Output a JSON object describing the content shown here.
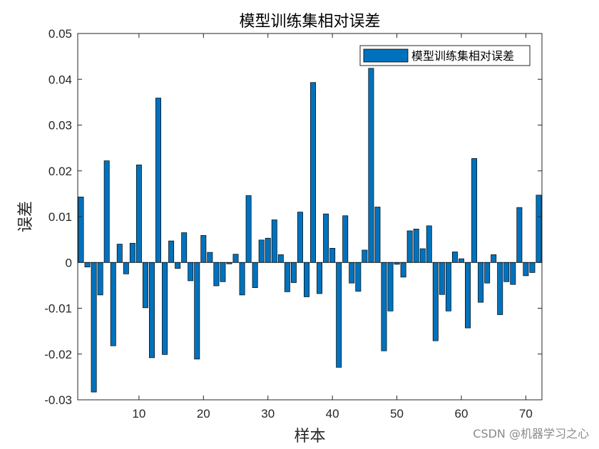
{
  "chart_data": {
    "type": "bar",
    "title": "模型训练集相对误差",
    "xlabel": "样本",
    "ylabel": "误差",
    "xlim": [
      0.5,
      72.5
    ],
    "ylim": [
      -0.03,
      0.05
    ],
    "xticks": [
      10,
      20,
      30,
      40,
      50,
      60,
      70
    ],
    "yticks": [
      -0.03,
      -0.02,
      -0.01,
      0,
      0.01,
      0.02,
      0.03,
      0.04,
      0.05
    ],
    "ytick_labels": [
      "-0.03",
      "-0.02",
      "-0.01",
      "0",
      "0.01",
      "0.02",
      "0.03",
      "0.04",
      "0.05"
    ],
    "legend": {
      "position": "top-right",
      "entries": [
        "模型训练集相对误差"
      ]
    },
    "bar_color": "#0072BD",
    "edge_color": "#000000",
    "series": [
      {
        "name": "模型训练集相对误差",
        "x": [
          1,
          2,
          3,
          4,
          5,
          6,
          7,
          8,
          9,
          10,
          11,
          12,
          13,
          14,
          15,
          16,
          17,
          18,
          19,
          20,
          21,
          22,
          23,
          24,
          25,
          26,
          27,
          28,
          29,
          30,
          31,
          32,
          33,
          34,
          35,
          36,
          37,
          38,
          39,
          40,
          41,
          42,
          43,
          44,
          45,
          46,
          47,
          48,
          49,
          50,
          51,
          52,
          53,
          54,
          55,
          56,
          57,
          58,
          59,
          60,
          61,
          62,
          63,
          64,
          65,
          66,
          67,
          68,
          69,
          70,
          71,
          72
        ],
        "values": [
          0.0143,
          -0.001,
          -0.0283,
          -0.0071,
          0.0222,
          -0.0182,
          0.004,
          -0.0025,
          0.0042,
          0.0213,
          -0.0099,
          -0.0208,
          0.0359,
          -0.0201,
          0.0047,
          -0.0013,
          0.0065,
          -0.004,
          -0.0211,
          0.0059,
          0.0022,
          -0.0051,
          -0.0042,
          -0.0003,
          0.0018,
          -0.0071,
          0.0146,
          -0.0055,
          0.0049,
          0.0053,
          0.0093,
          0.0017,
          -0.0064,
          -0.0044,
          0.011,
          -0.0075,
          0.0393,
          -0.0068,
          0.0106,
          0.0031,
          -0.0229,
          0.0102,
          -0.0045,
          -0.0063,
          0.0027,
          0.0424,
          0.0121,
          -0.0193,
          -0.0106,
          -0.0004,
          -0.0032,
          0.0069,
          0.0073,
          0.003,
          0.008,
          -0.0171,
          -0.007,
          -0.0106,
          0.0023,
          0.0008,
          -0.0143,
          0.0227,
          -0.0087,
          -0.0045,
          0.0017,
          -0.0114,
          -0.0042,
          -0.0048,
          0.012,
          -0.0029,
          -0.0022,
          0.0147
        ]
      }
    ]
  },
  "watermark": "CSDN @机器学习之心"
}
